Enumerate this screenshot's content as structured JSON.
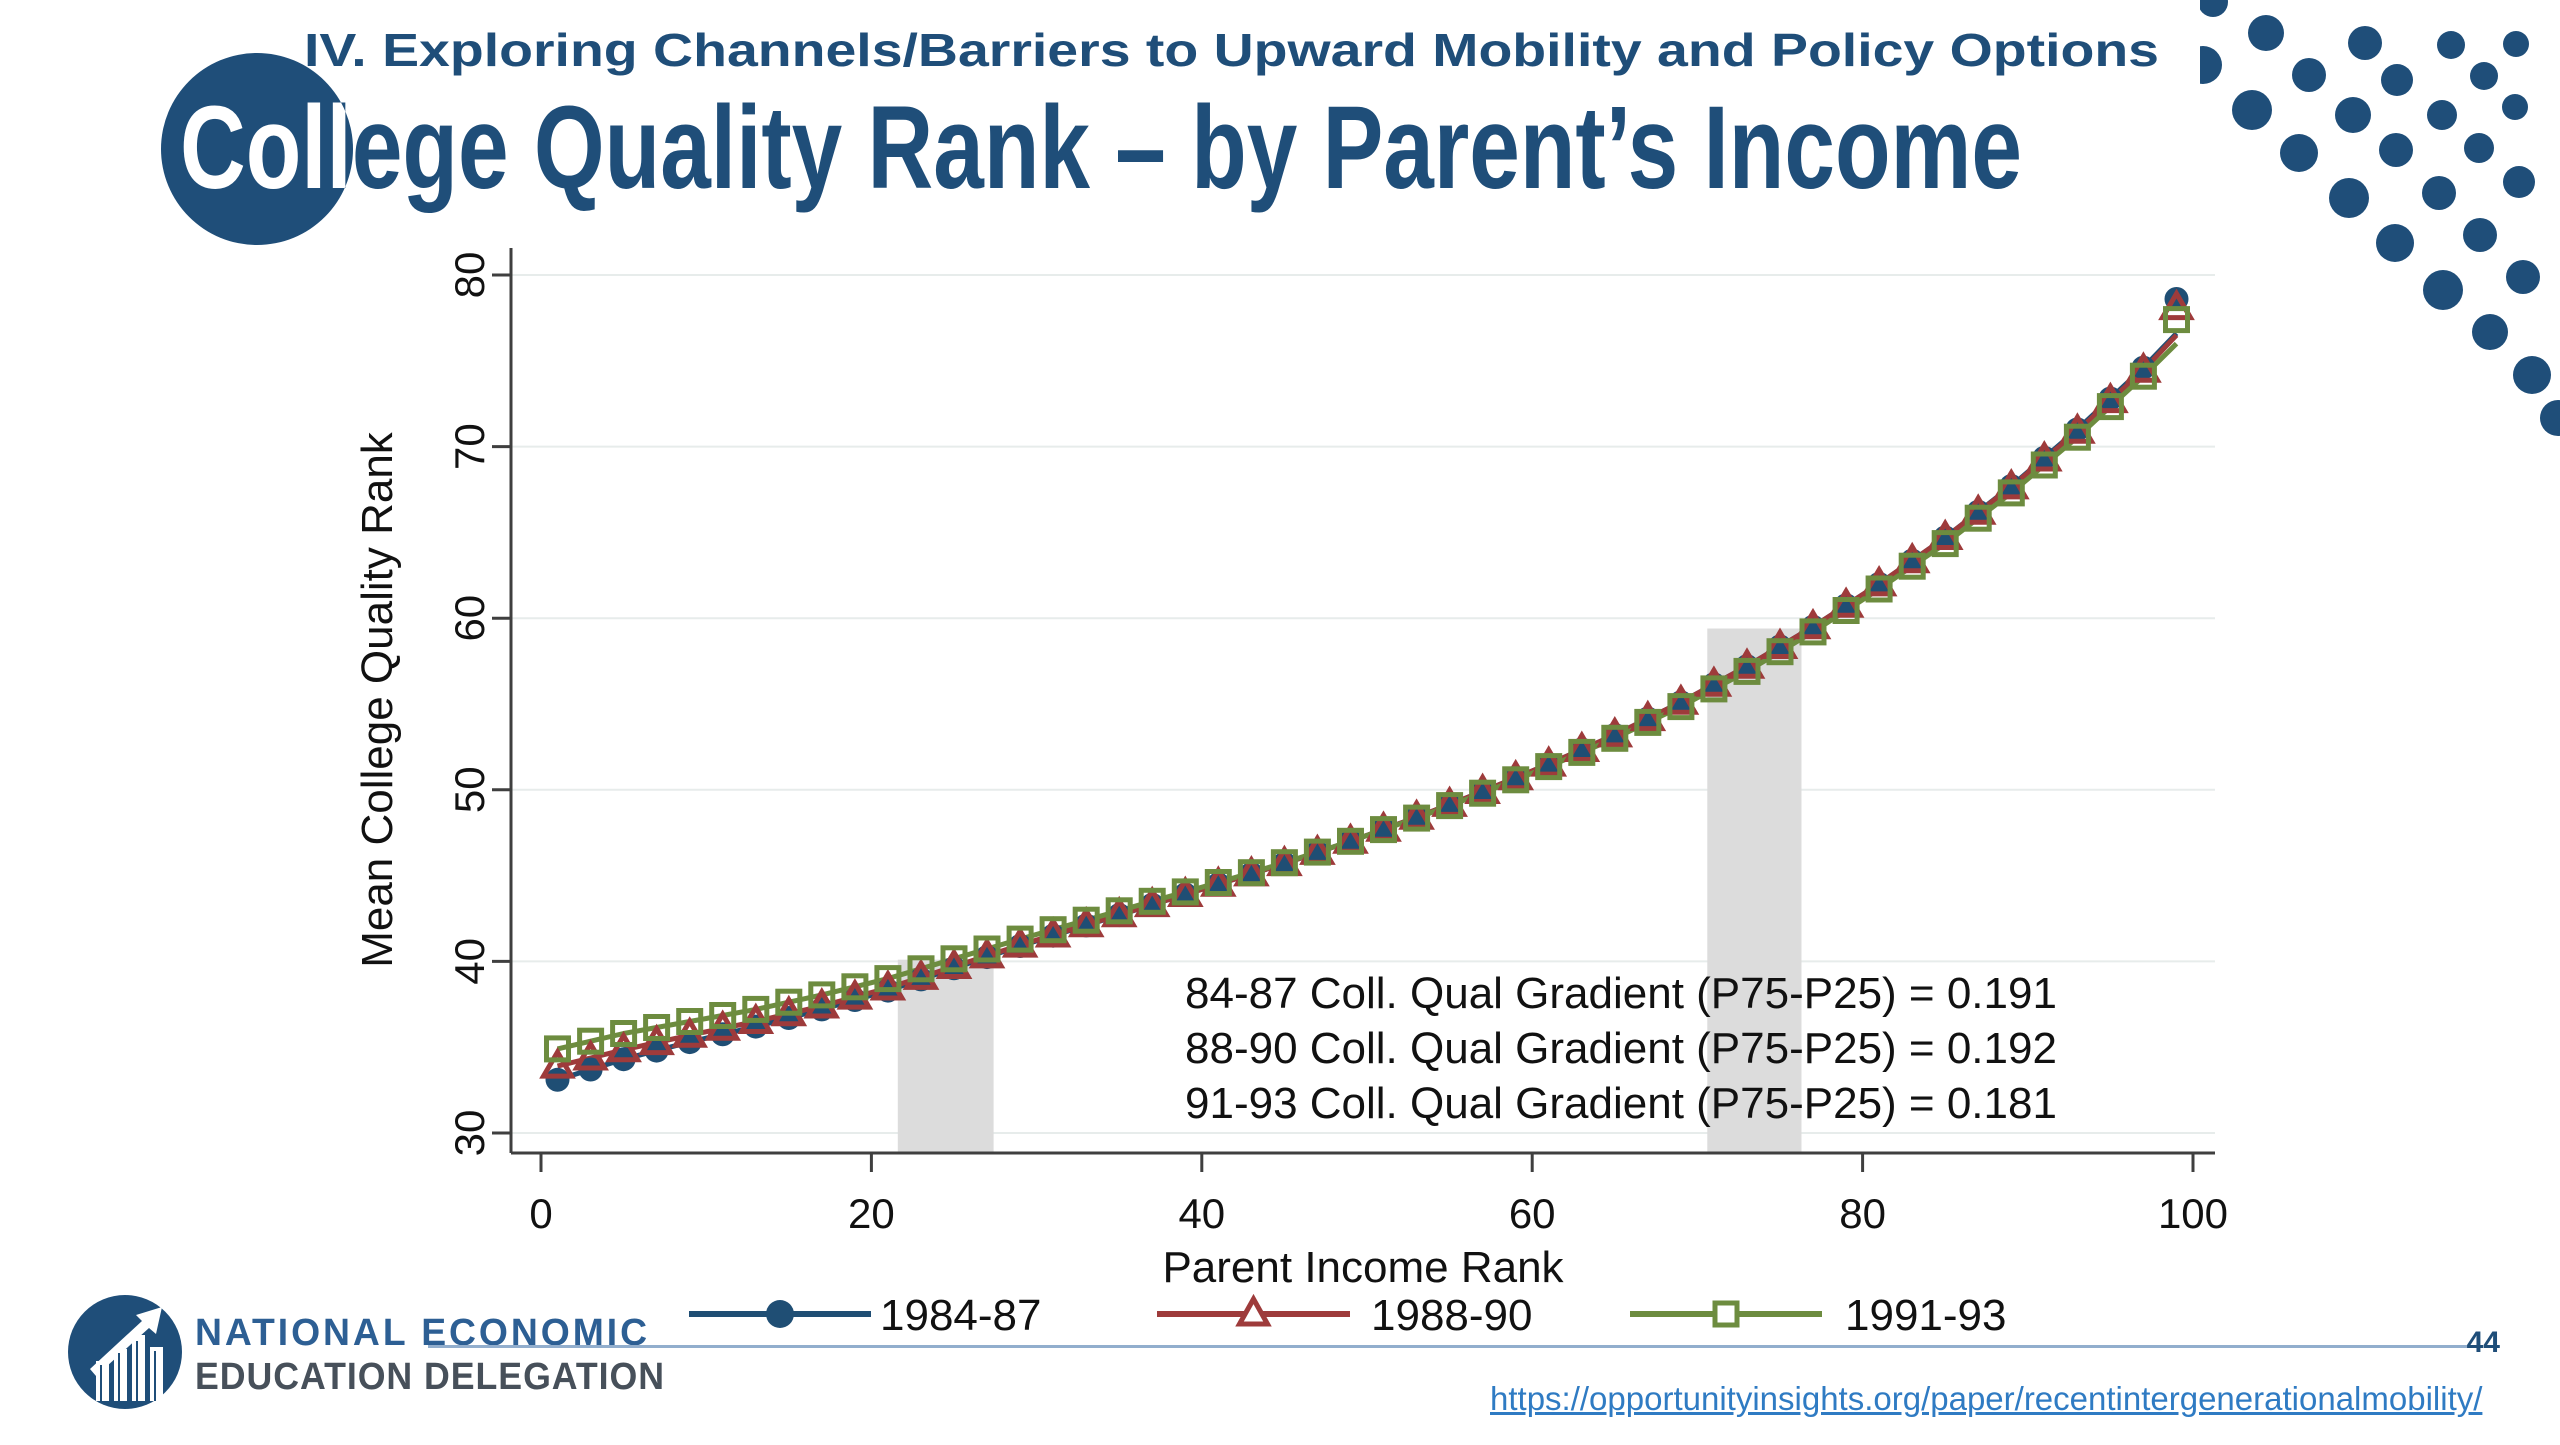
{
  "slide": {
    "kicker": "IV. Exploring Channels/Barriers to Upward Mobility and Policy Options",
    "title": "College Quality Rank – by Parent’s Income",
    "page_number": "44",
    "link": "https://opportunityinsights.org/paper/recentintergenerationalmobility/"
  },
  "logo": {
    "line1": "NATIONAL ECONOMIC",
    "line2": "EDUCATION DELEGATION"
  },
  "colors": {
    "accent_navy": "#1f4e79",
    "series_blue": "#1f4e74",
    "series_red": "#9e3b3b",
    "series_green": "#6d8c3f",
    "band_gray": "#dcdcdc",
    "link_blue": "#2f7bc3",
    "divider_blue": "#92aecd"
  },
  "chart_data": {
    "type": "scatter",
    "title": "",
    "xlabel": "Parent Income Rank",
    "ylabel": "Mean College Quality Rank",
    "xlim": [
      0,
      100
    ],
    "ylim": [
      30,
      80
    ],
    "xticks": [
      0,
      20,
      40,
      60,
      80,
      100
    ],
    "yticks": [
      30,
      40,
      50,
      60,
      70,
      80
    ],
    "grid": "horizontal-only",
    "legend_position": "bottom",
    "highlight_bands": [
      {
        "x0": 21.6,
        "x1": 27.4,
        "top": 40.1
      },
      {
        "x0": 70.6,
        "x1": 76.3,
        "top": 59.4
      }
    ],
    "annotations": [
      "84-87 Coll. Qual Gradient (P75-P25) = 0.191",
      "88-90 Coll. Qual Gradient (P75-P25) = 0.192",
      "91-93 Coll. Qual Gradient (P75-P25) = 0.181"
    ],
    "x": [
      1,
      3,
      5,
      7,
      9,
      11,
      13,
      15,
      17,
      19,
      21,
      23,
      25,
      27,
      29,
      31,
      33,
      35,
      37,
      39,
      41,
      43,
      45,
      47,
      49,
      51,
      53,
      55,
      57,
      59,
      61,
      63,
      65,
      67,
      69,
      71,
      73,
      75,
      77,
      79,
      81,
      83,
      85,
      87,
      89,
      91,
      93,
      95,
      97,
      99
    ],
    "series": [
      {
        "name": "1984-87",
        "color": "#1f4e74",
        "marker": "circle",
        "fill": "solid",
        "gradient_p75_p25": 0.191,
        "trend_end": 76.6,
        "values": [
          33.1,
          33.7,
          34.3,
          34.8,
          35.3,
          35.75,
          36.2,
          36.7,
          37.2,
          37.75,
          38.3,
          38.95,
          39.6,
          40.25,
          40.9,
          41.5,
          42.1,
          42.7,
          43.3,
          43.9,
          44.5,
          45.1,
          45.7,
          46.35,
          47.0,
          47.7,
          48.4,
          49.15,
          49.9,
          50.7,
          51.5,
          52.35,
          53.2,
          54.15,
          55.1,
          56.15,
          57.2,
          58.35,
          59.5,
          60.75,
          62.0,
          63.35,
          64.7,
          66.2,
          67.7,
          69.35,
          71.0,
          72.8,
          74.6,
          78.6
        ]
      },
      {
        "name": "1988-90",
        "color": "#9e3b3b",
        "marker": "triangle",
        "fill": "hollow",
        "gradient_p75_p25": 0.192,
        "trend_end": 76.5,
        "values": [
          33.9,
          34.37,
          34.85,
          35.27,
          35.7,
          36.1,
          36.5,
          36.95,
          37.4,
          37.92,
          38.45,
          39.07,
          39.7,
          40.32,
          40.95,
          41.54,
          42.13,
          42.72,
          43.31,
          43.9,
          44.5,
          45.1,
          45.7,
          46.35,
          47.0,
          47.7,
          48.4,
          49.15,
          49.9,
          50.7,
          51.5,
          52.35,
          53.2,
          54.15,
          55.1,
          56.15,
          57.2,
          58.35,
          59.5,
          60.75,
          62.0,
          63.35,
          64.7,
          66.18,
          67.65,
          69.28,
          70.9,
          72.68,
          74.45,
          78.1
        ]
      },
      {
        "name": "1991-93",
        "color": "#6d8c3f",
        "marker": "square",
        "fill": "hollow",
        "gradient_p75_p25": 0.181,
        "trend_end": 76.0,
        "values": [
          34.9,
          35.35,
          35.8,
          36.15,
          36.5,
          36.85,
          37.2,
          37.62,
          38.05,
          38.52,
          39.0,
          39.57,
          40.15,
          40.72,
          41.3,
          41.85,
          42.4,
          42.95,
          43.5,
          44.05,
          44.6,
          45.17,
          45.75,
          46.37,
          47.0,
          47.68,
          48.35,
          49.08,
          49.8,
          50.58,
          51.35,
          52.18,
          53.0,
          53.93,
          54.85,
          55.88,
          56.9,
          58.05,
          59.2,
          60.45,
          61.7,
          63.03,
          64.35,
          65.83,
          67.3,
          68.93,
          70.55,
          72.33,
          74.1,
          77.4
        ]
      }
    ]
  }
}
